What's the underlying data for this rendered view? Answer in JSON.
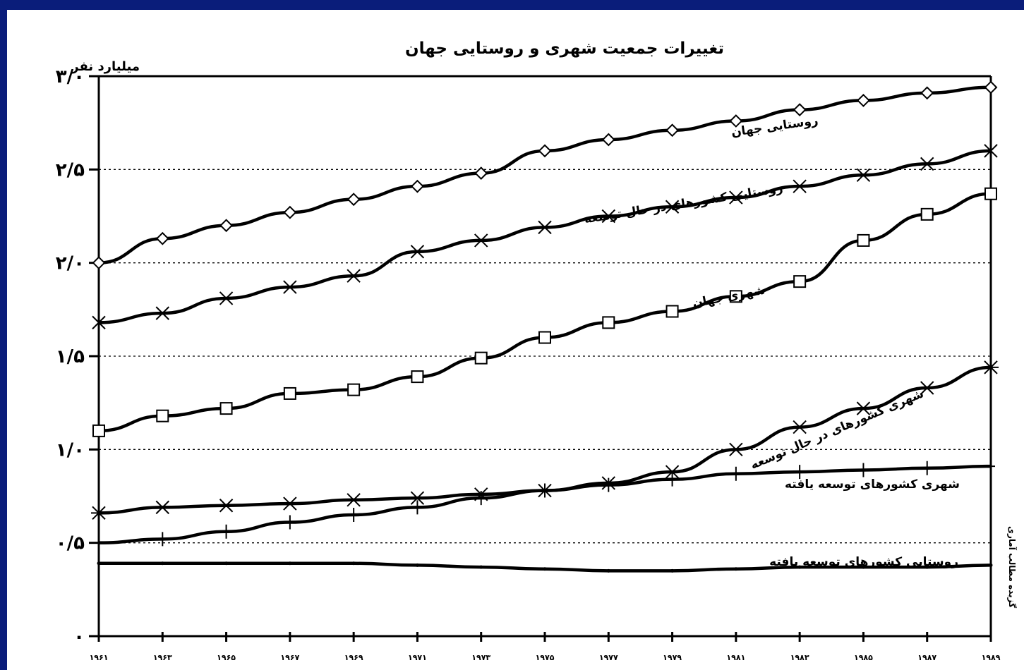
{
  "chart_data": {
    "type": "line",
    "title": "تغییرات جمعیت شهری و روستایی جهان",
    "ylabel": "میلیارد نفر",
    "yticks": [
      "۰",
      "۰/۵",
      "۱/۰",
      "۱/۵",
      "۲/۰",
      "۲/۵",
      "۳/۰"
    ],
    "ylim": [
      0,
      3.0
    ],
    "grid": true,
    "source": "گزیده مطالب آماری",
    "categories": [
      "۱۹۶۱",
      "۱۹۶۳",
      "۱۹۶۵",
      "۱۹۶۷",
      "۱۹۶۹",
      "۱۹۷۱",
      "۱۹۷۳",
      "۱۹۷۵",
      "۱۹۷۷",
      "۱۹۷۹",
      "۱۹۸۱",
      "۱۹۸۳",
      "۱۹۸۵",
      "۱۹۸۷",
      "۱۹۸۹"
    ],
    "x": [
      1961,
      1963,
      1965,
      1967,
      1969,
      1971,
      1973,
      1975,
      1977,
      1979,
      1981,
      1983,
      1985,
      1987,
      1989
    ],
    "series": [
      {
        "name": "روستایی جهان",
        "marker": "diamond",
        "values": [
          2.0,
          2.13,
          2.2,
          2.27,
          2.34,
          2.41,
          2.48,
          2.6,
          2.66,
          2.71,
          2.76,
          2.82,
          2.87,
          2.91,
          2.94
        ]
      },
      {
        "name": "روستایی کشورهای در حال توسعه",
        "marker": "x",
        "values": [
          1.68,
          1.73,
          1.81,
          1.87,
          1.93,
          2.06,
          2.12,
          2.19,
          2.25,
          2.3,
          2.35,
          2.41,
          2.47,
          2.53,
          2.6
        ]
      },
      {
        "name": "شهری جهان",
        "marker": "square",
        "values": [
          1.1,
          1.18,
          1.22,
          1.3,
          1.32,
          1.39,
          1.49,
          1.6,
          1.68,
          1.74,
          1.82,
          1.9,
          2.12,
          2.26,
          2.37
        ]
      },
      {
        "name": "شهری کشورهای در حال توسعه",
        "marker": "asterisk",
        "values": [
          0.66,
          0.69,
          0.7,
          0.71,
          0.73,
          0.74,
          0.76,
          0.78,
          0.82,
          0.88,
          1.0,
          1.12,
          1.22,
          1.33,
          1.44
        ]
      },
      {
        "name": "شهری کشورهای توسعه یافته",
        "marker": "plus",
        "values": [
          0.5,
          0.52,
          0.56,
          0.61,
          0.65,
          0.69,
          0.74,
          0.78,
          0.81,
          0.84,
          0.87,
          0.88,
          0.89,
          0.9,
          0.91
        ]
      },
      {
        "name": "روستایی کشورهای توسعه یافته",
        "marker": "dot",
        "values": [
          0.39,
          0.39,
          0.39,
          0.39,
          0.39,
          0.38,
          0.37,
          0.36,
          0.35,
          0.35,
          0.36,
          0.37,
          0.37,
          0.37,
          0.38
        ]
      }
    ]
  }
}
